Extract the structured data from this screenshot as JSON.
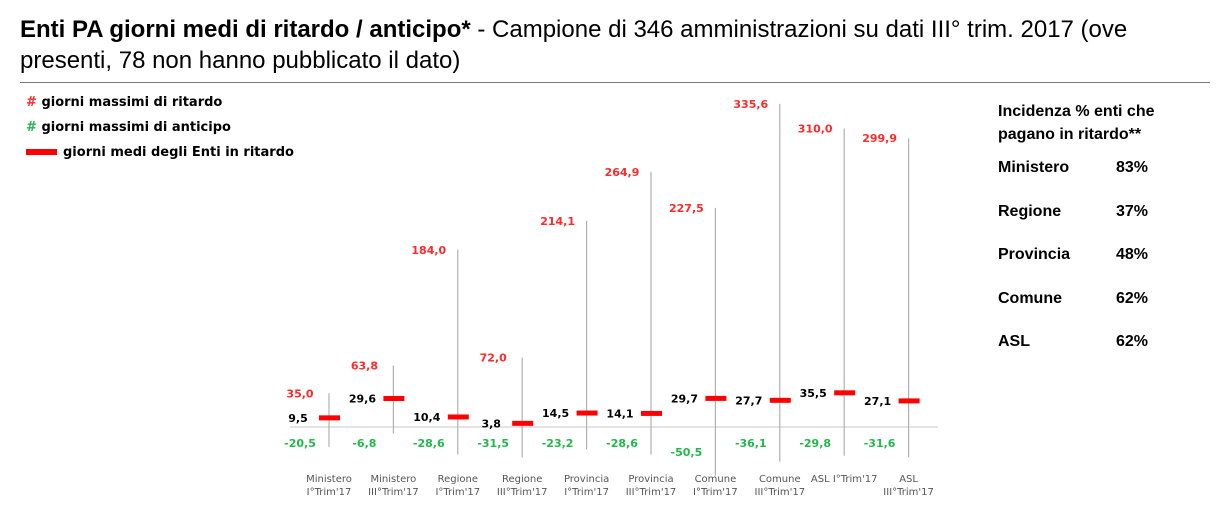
{
  "header": {
    "title_bold": "Enti PA giorni medi di ritardo / anticipo*",
    "title_rest": " - Campione di 346 amministrazioni su dati III° trim. 2017 (ove presenti, 78 non hanno pubblicato il dato)"
  },
  "legend": {
    "max_delay": {
      "symbol": "#",
      "label": "giorni massimi di ritardo"
    },
    "max_advance": {
      "symbol": "#",
      "label": "giorni massimi di anticipo"
    },
    "avg_delay": {
      "label": "giorni medi degli Enti in ritardo"
    }
  },
  "side_panel": {
    "title": "Incidenza % enti che pagano in ritardo**",
    "rows": [
      {
        "label": "Ministero",
        "value": "83%"
      },
      {
        "label": "Regione",
        "value": "37%"
      },
      {
        "label": "Provincia",
        "value": "48%"
      },
      {
        "label": "Comune",
        "value": "62%"
      },
      {
        "label": "ASL",
        "value": "62%"
      }
    ]
  },
  "colors": {
    "delay": "#ff2a2a",
    "advance": "#22b84a",
    "avg_marker": "#ff0000",
    "range_line": "#b0b0b0",
    "text": "#000000",
    "axis": "#c8c8c8"
  },
  "chart_data": {
    "type": "bar",
    "categories": [
      [
        "Ministero",
        "I°Trim'17"
      ],
      [
        "Ministero",
        "III°Trim'17"
      ],
      [
        "Regione",
        "I°Trim'17"
      ],
      [
        "Regione",
        "III°Trim'17"
      ],
      [
        "Provincia",
        "I°Trim'17"
      ],
      [
        "Provincia",
        "III°Trim'17"
      ],
      [
        "Comune",
        "I°Trim'17"
      ],
      [
        "Comune",
        "III°Trim'17"
      ],
      [
        "ASL I°Trim'17"
      ],
      [
        "ASL",
        "III°Trim'17"
      ]
    ],
    "series": [
      {
        "name": "giorni massimi di ritardo",
        "values": [
          35.0,
          63.8,
          184.0,
          72.0,
          214.1,
          264.9,
          227.5,
          335.6,
          310.0,
          299.9
        ],
        "labels": [
          "35,0",
          "63,8",
          "184,0",
          "72,0",
          "214,1",
          "264,9",
          "227,5",
          "335,6",
          "310,0",
          "299,9"
        ]
      },
      {
        "name": "giorni massimi di anticipo",
        "values": [
          -20.5,
          -6.8,
          -28.6,
          -31.5,
          -23.2,
          -28.6,
          -50.5,
          -36.1,
          -29.8,
          -31.6
        ],
        "labels": [
          "-20,5",
          "-6,8",
          "-28,6",
          "-31,5",
          "-23,2",
          "-28,6",
          "-50,5",
          "-36,1",
          "-29,8",
          "-31,6"
        ]
      },
      {
        "name": "giorni medi degli Enti in ritardo",
        "values": [
          9.5,
          29.6,
          10.4,
          3.8,
          14.5,
          14.1,
          29.7,
          27.7,
          35.5,
          27.1
        ],
        "labels": [
          "9,5",
          "29,6",
          "10,4",
          "3,8",
          "14,5",
          "14,1",
          "29,7",
          "27,7",
          "35,5",
          "27,1"
        ]
      }
    ],
    "ylim": [
      -60,
      345
    ],
    "grid": false
  }
}
